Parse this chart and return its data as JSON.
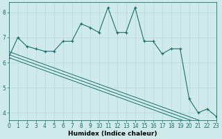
{
  "xlabel": "Humidex (Indice chaleur)",
  "background_color": "#ceeaea",
  "line_color": "#1a6e6e",
  "grid_color": "#b8d8d8",
  "x_values": [
    0,
    1,
    2,
    3,
    4,
    5,
    6,
    7,
    8,
    9,
    10,
    11,
    12,
    13,
    14,
    15,
    16,
    17,
    18,
    19,
    20,
    21,
    22,
    23
  ],
  "y_main": [
    6.2,
    7.0,
    6.65,
    6.55,
    6.45,
    6.45,
    6.85,
    6.85,
    7.55,
    7.4,
    7.2,
    8.2,
    7.2,
    7.2,
    8.2,
    6.85,
    6.85,
    6.35,
    6.55,
    6.55,
    4.55,
    4.0,
    4.15,
    3.85
  ],
  "y_line1": [
    6.2,
    6.07,
    5.94,
    5.81,
    5.68,
    5.55,
    5.42,
    5.29,
    5.16,
    5.03,
    4.9,
    4.77,
    4.64,
    4.51,
    4.38,
    4.25,
    4.12,
    3.99,
    3.86,
    3.73,
    3.6,
    3.47,
    3.34,
    3.21
  ],
  "y_line2": [
    6.32,
    6.19,
    6.06,
    5.93,
    5.8,
    5.67,
    5.54,
    5.41,
    5.28,
    5.15,
    5.02,
    4.89,
    4.76,
    4.63,
    4.5,
    4.37,
    4.24,
    4.11,
    3.98,
    3.85,
    3.72,
    3.59,
    3.46,
    3.33
  ],
  "y_line3": [
    6.44,
    6.31,
    6.18,
    6.05,
    5.92,
    5.79,
    5.66,
    5.53,
    5.4,
    5.27,
    5.14,
    5.01,
    4.88,
    4.75,
    4.62,
    4.49,
    4.36,
    4.23,
    4.1,
    3.97,
    3.84,
    3.71,
    3.58,
    3.45
  ],
  "xlim": [
    0,
    23
  ],
  "ylim": [
    3.7,
    8.4
  ],
  "yticks": [
    4,
    5,
    6,
    7,
    8
  ],
  "xticks": [
    0,
    1,
    2,
    3,
    4,
    5,
    6,
    7,
    8,
    9,
    10,
    11,
    12,
    13,
    14,
    15,
    16,
    17,
    18,
    19,
    20,
    21,
    22,
    23
  ],
  "xlabel_fontsize": 6.5,
  "tick_fontsize": 5.5
}
